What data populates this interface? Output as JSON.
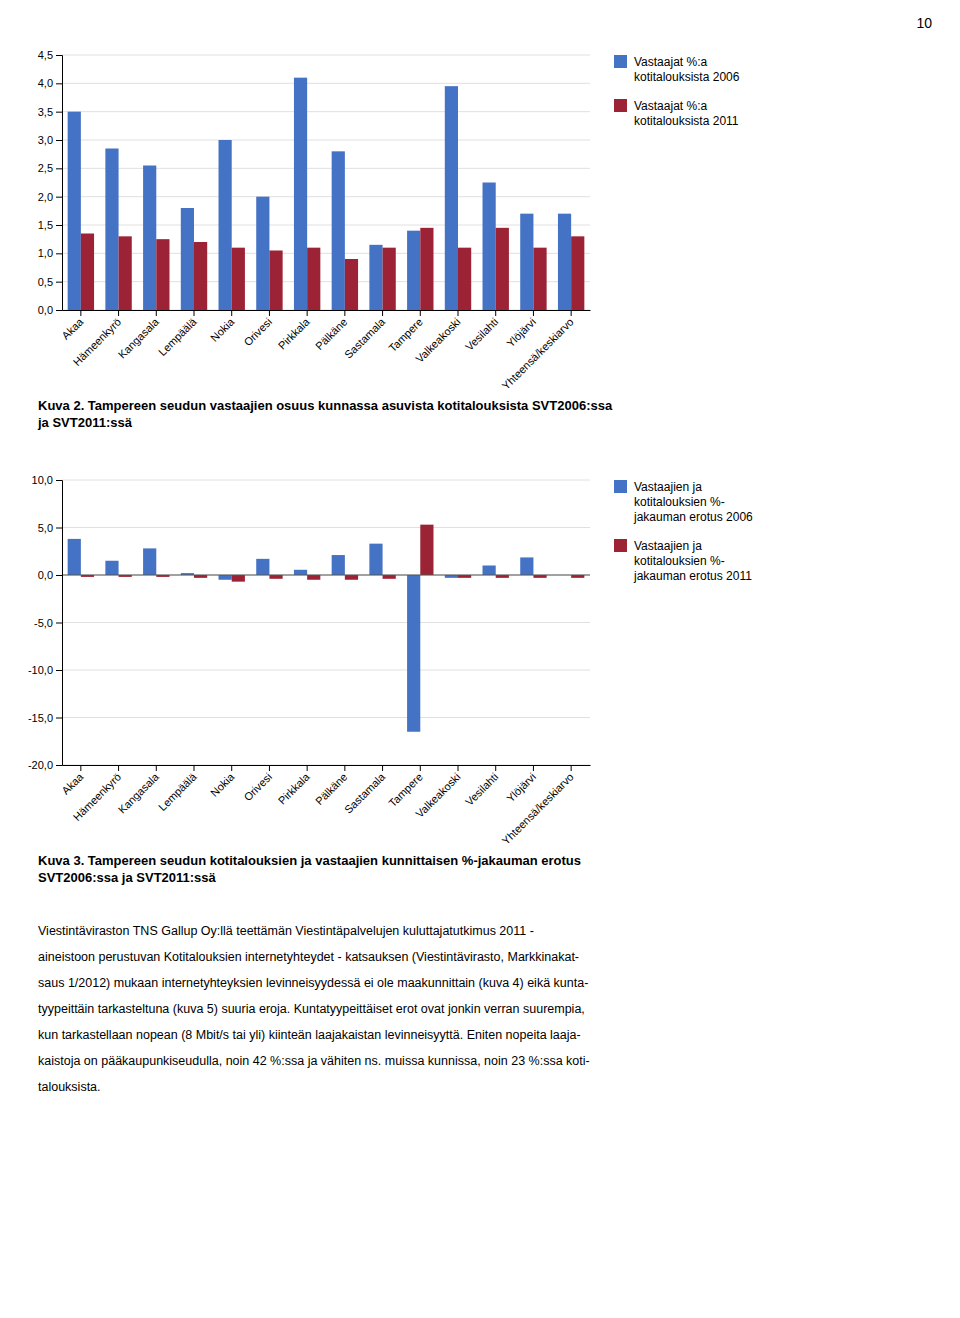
{
  "page_number": "10",
  "chart_data": [
    {
      "type": "bar",
      "title": "Kuva 2. Tampereen seudun vastaajien osuus kunnassa asuvista kotitalouksista SVT2006:ssa\nja SVT2011:ssä",
      "categories": [
        "Akaa",
        "Hämeenkyrö",
        "Kangasala",
        "Lempäälä",
        "Nokia",
        "Orivesi",
        "Pirkkala",
        "Pälkäne",
        "Sastamala",
        "Tampere",
        "Valkeakoski",
        "Vesilahti",
        "Ylöjärvi",
        "Yhteensä/keskiarvo"
      ],
      "series": [
        {
          "name": "Vastaajat %:a\nkotitalouksista 2006",
          "color": "#4472C4",
          "values": [
            3.5,
            2.85,
            2.55,
            1.8,
            3.0,
            2.0,
            4.1,
            2.8,
            1.15,
            1.4,
            3.95,
            2.25,
            1.7,
            1.7
          ]
        },
        {
          "name": "Vastaajat %:a\nkotitalouksista 2011",
          "color": "#9B2335",
          "values": [
            1.35,
            1.3,
            1.25,
            1.2,
            1.1,
            1.05,
            1.1,
            0.9,
            1.1,
            1.45,
            1.1,
            1.45,
            1.1,
            1.3
          ]
        }
      ],
      "ylim": [
        0.0,
        4.5
      ],
      "yticks": [
        {
          "value": 0.0,
          "label": "0,0"
        },
        {
          "value": 0.5,
          "label": "0,5"
        },
        {
          "value": 1.0,
          "label": "1,0"
        },
        {
          "value": 1.5,
          "label": "1,5"
        },
        {
          "value": 2.0,
          "label": "2,0"
        },
        {
          "value": 2.5,
          "label": "2,5"
        },
        {
          "value": 3.0,
          "label": "3,0"
        },
        {
          "value": 3.5,
          "label": "3,5"
        },
        {
          "value": 4.0,
          "label": "4,0"
        },
        {
          "value": 4.5,
          "label": "4,5"
        }
      ],
      "grid": true,
      "legend": "right"
    },
    {
      "type": "bar",
      "title": "Kuva 3. Tampereen seudun kotitalouksien ja vastaajien kunnittaisen %-jakauman erotus\nSVT2006:ssa ja SVT2011:ssä",
      "categories": [
        "Akaa",
        "Hämeenkyrö",
        "Kangasala",
        "Lempäälä",
        "Nokia",
        "Orivesi",
        "Pirkkala",
        "Pälkäne",
        "Sastamala",
        "Tampere",
        "Valkeakoski",
        "Vesilahti",
        "Ylöjärvi",
        "Yhteensä/keskiarvo"
      ],
      "series": [
        {
          "name": "Vastaajien ja\nkotitalouksien %-\njakauman erotus 2006",
          "color": "#4472C4",
          "values": [
            3.8,
            1.5,
            2.8,
            0.2,
            -0.5,
            1.7,
            0.55,
            2.1,
            3.3,
            -16.5,
            -0.3,
            1.0,
            1.85,
            0.0
          ]
        },
        {
          "name": "Vastaajien ja\nkotitalouksien %-\njakauman erotus 2011",
          "color": "#9B2335",
          "values": [
            -0.2,
            -0.2,
            -0.2,
            -0.3,
            -0.7,
            -0.4,
            -0.5,
            -0.5,
            -0.4,
            5.3,
            -0.3,
            -0.3,
            -0.3,
            -0.3
          ]
        }
      ],
      "ylim": [
        -20.0,
        10.0
      ],
      "yticks": [
        {
          "value": -20.0,
          "label": "-20,0"
        },
        {
          "value": -15.0,
          "label": "-15,0"
        },
        {
          "value": -10.0,
          "label": "-10,0"
        },
        {
          "value": -5.0,
          "label": "-5,0"
        },
        {
          "value": 0.0,
          "label": "0,0"
        },
        {
          "value": 5.0,
          "label": "5,0"
        },
        {
          "value": 10.0,
          "label": "10,0"
        }
      ],
      "grid": true,
      "legend": "right"
    }
  ],
  "body_text": [
    "Viestintäviraston TNS Gallup Oy:llä teettämän Viestintäpalvelujen kuluttajatutkimus 2011 -",
    "aineistoon perustuvan Kotitalouksien internetyhteydet - katsauksen (Viestintävirasto, Markkinakat-",
    "saus 1/2012) mukaan internetyhteyksien levinneisyydessä ei ole maakunnittain (kuva 4) eikä kunta-",
    "tyypeittäin tarkasteltuna (kuva 5) suuria eroja. Kuntatyypeittäiset erot ovat jonkin verran suurempia,",
    "kun tarkastellaan nopean (8 Mbit/s tai yli) kiinteän laajakaistan levinneisyyttä. Eniten nopeita laaja-",
    "kaistoja on pääkaupunkiseudulla, noin 42 %:ssa ja vähiten ns. muissa kunnissa, noin 23 %:ssa koti-",
    "talouksista."
  ]
}
